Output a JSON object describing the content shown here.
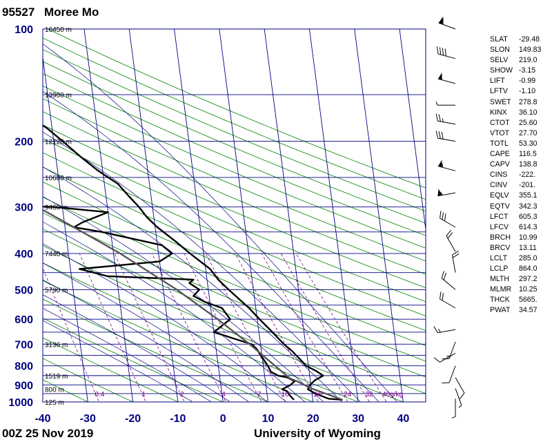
{
  "header": {
    "station_id": "95527",
    "station_name": "Moree Mo"
  },
  "footer": {
    "time": "00Z 25 Nov 2019",
    "source": "University of Wyoming"
  },
  "chart_data": {
    "type": "line",
    "title": "",
    "xlabel": "",
    "ylabel": "",
    "pressure_ticks": [
      100,
      200,
      300,
      400,
      500,
      600,
      700,
      800,
      900,
      1000
    ],
    "temperature_ticks": [
      -40,
      -30,
      -20,
      -10,
      0,
      10,
      20,
      30,
      40
    ],
    "xlim": [
      -40,
      45
    ],
    "ylim": [
      1000,
      100
    ],
    "y_scale": "log",
    "height_labels": [
      {
        "p": 100,
        "label": "16450 m"
      },
      {
        "p": 150,
        "label": "13960 m"
      },
      {
        "p": 200,
        "label": "12120 m"
      },
      {
        "p": 250,
        "label": "10680 m"
      },
      {
        "p": 300,
        "label": "9460 m"
      },
      {
        "p": 400,
        "label": "7440 m"
      },
      {
        "p": 500,
        "label": "5790 m"
      },
      {
        "p": 700,
        "label": "3136 m"
      },
      {
        "p": 850,
        "label": "1519 m"
      },
      {
        "p": 925,
        "label": "800 m"
      },
      {
        "p": 1000,
        "label": "125 m"
      }
    ],
    "mixing_ratio_labels": [
      "0.4",
      "1",
      "2",
      "4",
      "7",
      "10",
      "16",
      "24",
      "32",
      "40g/kg"
    ],
    "series": [
      {
        "name": "",
        "color": "#000000",
        "points": [
          {
            "p": 987,
            "t": 26.6
          },
          {
            "p": 980,
            "t": 23.5
          },
          {
            "p": 950,
            "t": 20.8
          },
          {
            "p": 925,
            "t": 19.2
          },
          {
            "p": 900,
            "t": 19.8
          },
          {
            "p": 875,
            "t": 21.0
          },
          {
            "p": 850,
            "t": 23.0
          },
          {
            "p": 825,
            "t": 21.5
          },
          {
            "p": 800,
            "t": 19.5
          },
          {
            "p": 760,
            "t": 18.0
          },
          {
            "p": 730,
            "t": 16.8
          },
          {
            "p": 700,
            "t": 15.2
          },
          {
            "p": 650,
            "t": 13.0
          },
          {
            "p": 600,
            "t": 10.5
          },
          {
            "p": 560,
            "t": 8.5
          },
          {
            "p": 500,
            "t": 4.5
          },
          {
            "p": 470,
            "t": 2.5
          },
          {
            "p": 440,
            "t": 1.0
          },
          {
            "p": 400,
            "t": -3.0
          },
          {
            "p": 370,
            "t": -6.0
          },
          {
            "p": 340,
            "t": -9.5
          },
          {
            "p": 320,
            "t": -11.5
          },
          {
            "p": 300,
            "t": -13.0
          },
          {
            "p": 280,
            "t": -15.0
          },
          {
            "p": 260,
            "t": -17.0
          },
          {
            "p": 240,
            "t": -21.0
          },
          {
            "p": 220,
            "t": -24.5
          },
          {
            "p": 200,
            "t": -28.0
          },
          {
            "p": 185,
            "t": -31.0
          },
          {
            "p": 170,
            "t": -35.0
          },
          {
            "p": 150,
            "t": -42.0
          },
          {
            "p": 130,
            "t": -48.0
          },
          {
            "p": 115,
            "t": -53.0
          },
          {
            "p": 100,
            "t": -57.0
          }
        ]
      },
      {
        "name": "",
        "color": "#000000",
        "points": [
          {
            "p": 987,
            "t": 15.8
          },
          {
            "p": 960,
            "t": 15.0
          },
          {
            "p": 935,
            "t": 14.5
          },
          {
            "p": 925,
            "t": 13.5
          },
          {
            "p": 900,
            "t": 15.5
          },
          {
            "p": 880,
            "t": 16.5
          },
          {
            "p": 860,
            "t": 15.0
          },
          {
            "p": 850,
            "t": 13.0
          },
          {
            "p": 830,
            "t": 11.5
          },
          {
            "p": 800,
            "t": 11.0
          },
          {
            "p": 760,
            "t": 10.0
          },
          {
            "p": 720,
            "t": 9.0
          },
          {
            "p": 700,
            "t": 8.0
          },
          {
            "p": 650,
            "t": 0.0
          },
          {
            "p": 600,
            "t": 4.0
          },
          {
            "p": 560,
            "t": 2.5
          },
          {
            "p": 540,
            "t": -1.0
          },
          {
            "p": 520,
            "t": -3.5
          },
          {
            "p": 500,
            "t": -2.0
          },
          {
            "p": 480,
            "t": -4.0
          },
          {
            "p": 470,
            "t": -3.0
          },
          {
            "p": 460,
            "t": -22.0
          },
          {
            "p": 440,
            "t": -28.0
          },
          {
            "p": 420,
            "t": -10.0
          },
          {
            "p": 400,
            "t": -7.0
          },
          {
            "p": 380,
            "t": -9.0
          },
          {
            "p": 350,
            "t": -22.0
          },
          {
            "p": 340,
            "t": -28.0
          },
          {
            "p": 330,
            "t": -26.0
          },
          {
            "p": 310,
            "t": -20.0
          },
          {
            "p": 300,
            "t": -32.0
          },
          {
            "p": 297,
            "t": -44.0
          },
          {
            "p": 280,
            "t": -42.0
          },
          {
            "p": 265,
            "t": -44.0
          },
          {
            "p": 250,
            "t": -46.0
          },
          {
            "p": 230,
            "t": -47.0
          },
          {
            "p": 210,
            "t": -51.0
          },
          {
            "p": 200,
            "t": -56.0
          },
          {
            "p": 185,
            "t": -62.0
          },
          {
            "p": 165,
            "t": -66.0
          },
          {
            "p": 150,
            "t": -70.0
          },
          {
            "p": 130,
            "t": -75.0
          },
          {
            "p": 115,
            "t": -79.0
          },
          {
            "p": 100,
            "t": -84.0
          }
        ]
      },
      {
        "name": "",
        "color": "#555555",
        "points": [
          {
            "p": 987,
            "t": 26.6
          },
          {
            "p": 920,
            "t": 20.0
          },
          {
            "p": 880,
            "t": 17.0
          },
          {
            "p": 864,
            "t": 15.5
          },
          {
            "p": 800,
            "t": 12.6
          },
          {
            "p": 700,
            "t": 7.6
          },
          {
            "p": 600,
            "t": 1.2
          },
          {
            "p": 500,
            "t": -7.0
          },
          {
            "p": 400,
            "t": -18.5
          },
          {
            "p": 355,
            "t": -25.5
          },
          {
            "p": 300,
            "t": -35.5
          },
          {
            "p": 250,
            "t": -46.5
          },
          {
            "p": 200,
            "t": -60.0
          },
          {
            "p": 150,
            "t": -78.0
          },
          {
            "p": 100,
            "t": -102.0
          }
        ]
      }
    ],
    "wind_barbs": [
      {
        "p": 100,
        "dir": 290,
        "spd": 60
      },
      {
        "p": 120,
        "dir": 285,
        "spd": 40
      },
      {
        "p": 140,
        "dir": 285,
        "spd": 50
      },
      {
        "p": 160,
        "dir": 270,
        "spd": 5
      },
      {
        "p": 180,
        "dir": 280,
        "spd": 25
      },
      {
        "p": 200,
        "dir": 280,
        "spd": 30
      },
      {
        "p": 240,
        "dir": 285,
        "spd": 55
      },
      {
        "p": 275,
        "dir": 260,
        "spd": 55
      },
      {
        "p": 340,
        "dir": 300,
        "spd": 30
      },
      {
        "p": 395,
        "dir": 330,
        "spd": 20
      },
      {
        "p": 450,
        "dir": 350,
        "spd": 20
      },
      {
        "p": 500,
        "dir": 310,
        "spd": 20
      },
      {
        "p": 560,
        "dir": 300,
        "spd": 20
      },
      {
        "p": 640,
        "dir": 260,
        "spd": 15
      },
      {
        "p": 690,
        "dir": 200,
        "spd": 15
      },
      {
        "p": 740,
        "dir": 240,
        "spd": 10
      },
      {
        "p": 800,
        "dir": 200,
        "spd": 10
      },
      {
        "p": 860,
        "dir": 150,
        "spd": 10
      },
      {
        "p": 920,
        "dir": 160,
        "spd": 5
      },
      {
        "p": 980,
        "dir": 180,
        "spd": 5
      }
    ]
  },
  "indices": [
    {
      "key": "SLAT",
      "value": "-29.48"
    },
    {
      "key": "SLON",
      "value": "149.83"
    },
    {
      "key": "SELV",
      "value": "219.0"
    },
    {
      "key": "SHOW",
      "value": "-3.15"
    },
    {
      "key": "LIFT",
      "value": "-0.99"
    },
    {
      "key": "LFTV",
      "value": "-1.10"
    },
    {
      "key": "SWET",
      "value": "278.8"
    },
    {
      "key": "KINX",
      "value": "36.10"
    },
    {
      "key": "CTOT",
      "value": "25.60"
    },
    {
      "key": "VTOT",
      "value": "27.70"
    },
    {
      "key": "TOTL",
      "value": "53.30"
    },
    {
      "key": "CAPE",
      "value": "116.5"
    },
    {
      "key": "CAPV",
      "value": "138.8"
    },
    {
      "key": "CINS",
      "value": "-222."
    },
    {
      "key": "CINV",
      "value": "-201."
    },
    {
      "key": "EQLV",
      "value": "355.1"
    },
    {
      "key": "EQTV",
      "value": "342.3"
    },
    {
      "key": "LFCT",
      "value": "605.3"
    },
    {
      "key": "LFCV",
      "value": "614.3"
    },
    {
      "key": "BRCH",
      "value": "10.99"
    },
    {
      "key": "BRCV",
      "value": "13.11"
    },
    {
      "key": "LCLT",
      "value": "285.0"
    },
    {
      "key": "LCLP",
      "value": "864.0"
    },
    {
      "key": "MLTH",
      "value": "297.2"
    },
    {
      "key": "MLMR",
      "value": "10.25"
    },
    {
      "key": "THCK",
      "value": "5665."
    },
    {
      "key": "PWAT",
      "value": "34.57"
    }
  ]
}
